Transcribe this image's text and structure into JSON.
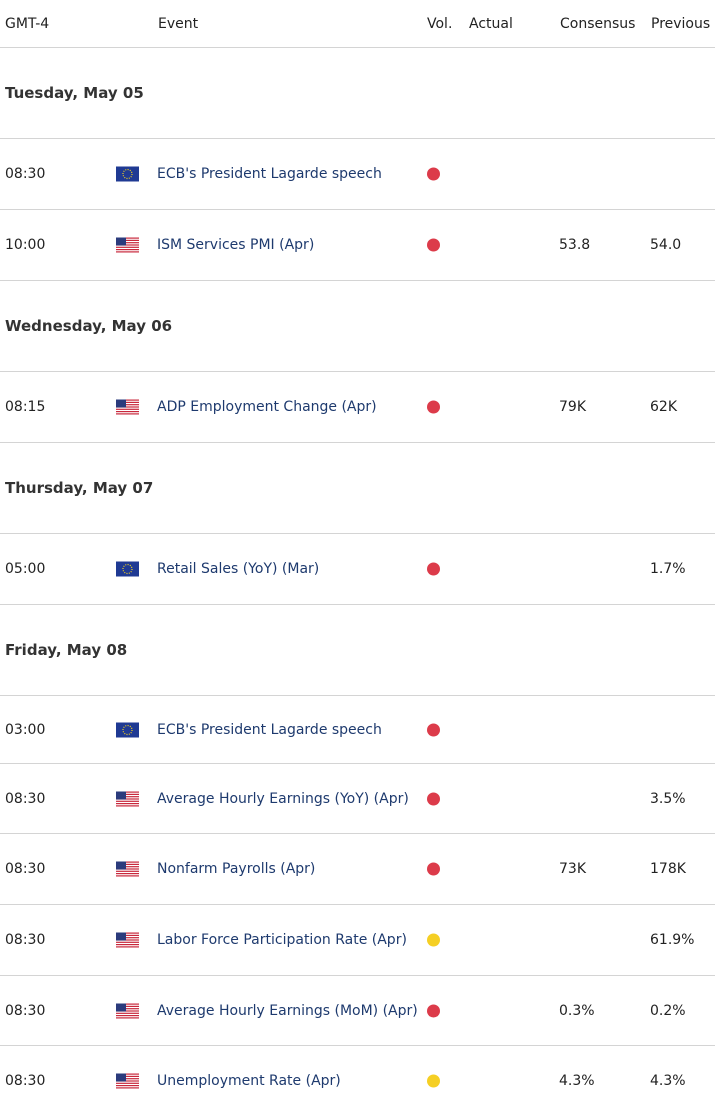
{
  "header": {
    "time_zone": "GMT-4",
    "event": "Event",
    "volatility": "Vol.",
    "actual": "Actual",
    "consensus": "Consensus",
    "previous": "Previous"
  },
  "days": [
    {
      "date": "Tuesday, May 05",
      "events": [
        {
          "time": "08:30",
          "event": "ECB's President Lagarde speech"
        },
        {
          "time": "10:00",
          "event": "ISM Services PMI (Apr)",
          "consensus": "53.8",
          "previous": "54.0"
        }
      ]
    },
    {
      "date": "Wednesday, May 06",
      "events": [
        {
          "time": "08:15",
          "event": "ADP Employment Change (Apr)",
          "consensus": "79K",
          "previous": "62K"
        }
      ]
    },
    {
      "date": "Thursday, May 07",
      "events": [
        {
          "time": "05:00",
          "event": "Retail Sales (YoY) (Mar)",
          "previous": "1.7%"
        }
      ]
    },
    {
      "date": "Friday, May 08",
      "events": [
        {
          "time": "03:00",
          "event": "ECB's President Lagarde speech"
        },
        {
          "time": "08:30",
          "event": "Average Hourly Earnings (YoY) (Apr)",
          "previous": "3.5%"
        },
        {
          "time": "08:30",
          "event": "Nonfarm Payrolls (Apr)",
          "consensus": "73K",
          "previous": "178K"
        },
        {
          "time": "08:30",
          "event": "Labor Force Participation Rate (Apr)",
          "previous": "61.9%"
        },
        {
          "time": "08:30",
          "event": "Average Hourly Earnings (MoM) (Apr)",
          "consensus": "0.3%",
          "previous": "0.2%"
        },
        {
          "time": "08:30",
          "event": "Unemployment Rate (Apr)",
          "consensus": "4.3%",
          "previous": "4.3%"
        }
      ]
    }
  ]
}
